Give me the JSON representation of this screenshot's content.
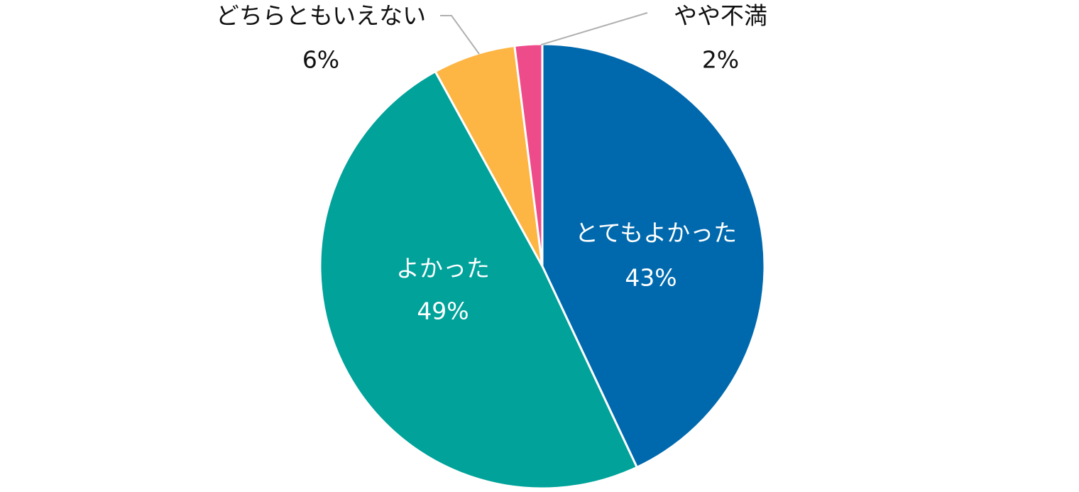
{
  "chart_data": {
    "type": "pie",
    "title": "",
    "start_angle_deg": 0,
    "direction": "clockwise",
    "slices": [
      {
        "name": "とてもよかった",
        "value": 43,
        "label": "43%",
        "color": "#0069AD",
        "label_position": "inside"
      },
      {
        "name": "よかった",
        "value": 49,
        "label": "49%",
        "color": "#00A29A",
        "label_position": "inside"
      },
      {
        "name": "どちらともいえない",
        "value": 6,
        "label": "6%",
        "color": "#FDB543",
        "label_position": "outside"
      },
      {
        "name": "やや不満",
        "value": 2,
        "label": "2%",
        "color": "#EE4B8A",
        "label_position": "outside"
      }
    ],
    "legend": "none",
    "slice_border_color": "#ffffff",
    "leader_line_color": "#b0b0b0"
  }
}
